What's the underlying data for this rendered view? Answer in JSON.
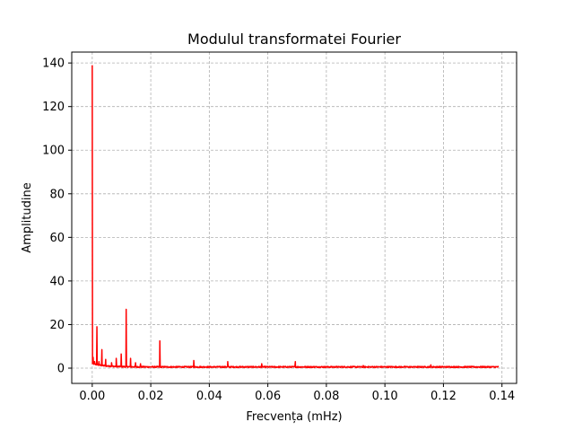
{
  "chart_data": {
    "type": "line",
    "title": "Modulul transformatei Fourier",
    "xlabel": "Frecvența (mHz)",
    "ylabel": "Amplitudine",
    "xlim": [
      -0.007,
      0.145
    ],
    "ylim": [
      -7,
      145
    ],
    "grid": true,
    "grid_style": "dashed",
    "line_color": "#ff0000",
    "x_ticks": [
      {
        "value": 0.0,
        "label": "0.00"
      },
      {
        "value": 0.02,
        "label": "0.02"
      },
      {
        "value": 0.04,
        "label": "0.04"
      },
      {
        "value": 0.06,
        "label": "0.06"
      },
      {
        "value": 0.08,
        "label": "0.08"
      },
      {
        "value": 0.1,
        "label": "0.10"
      },
      {
        "value": 0.12,
        "label": "0.12"
      },
      {
        "value": 0.14,
        "label": "0.14"
      }
    ],
    "y_ticks": [
      {
        "value": 0,
        "label": "0"
      },
      {
        "value": 20,
        "label": "20"
      },
      {
        "value": 40,
        "label": "40"
      },
      {
        "value": 60,
        "label": "60"
      },
      {
        "value": 80,
        "label": "80"
      },
      {
        "value": 100,
        "label": "100"
      },
      {
        "value": 120,
        "label": "120"
      },
      {
        "value": 140,
        "label": "140"
      }
    ],
    "series": [
      {
        "x_start": 0.0,
        "x_end": 0.1389,
        "baseline_noise": 0.8,
        "peaks": [
          {
            "x": 0.0,
            "y": 139
          },
          {
            "x": 0.0003,
            "y": 5
          },
          {
            "x": 0.0008,
            "y": 3
          },
          {
            "x": 0.0016,
            "y": 19
          },
          {
            "x": 0.0023,
            "y": 3
          },
          {
            "x": 0.0033,
            "y": 8.5
          },
          {
            "x": 0.0046,
            "y": 4
          },
          {
            "x": 0.0066,
            "y": 2.5
          },
          {
            "x": 0.0082,
            "y": 4.5
          },
          {
            "x": 0.0099,
            "y": 6.5
          },
          {
            "x": 0.0116,
            "y": 27
          },
          {
            "x": 0.0131,
            "y": 4.5
          },
          {
            "x": 0.0148,
            "y": 2.5
          },
          {
            "x": 0.0165,
            "y": 2
          },
          {
            "x": 0.0231,
            "y": 12.5
          },
          {
            "x": 0.0347,
            "y": 3.5
          },
          {
            "x": 0.0463,
            "y": 3
          },
          {
            "x": 0.0579,
            "y": 2
          },
          {
            "x": 0.0694,
            "y": 3
          },
          {
            "x": 0.0926,
            "y": 1.2
          },
          {
            "x": 0.1157,
            "y": 1.5
          }
        ]
      }
    ]
  }
}
